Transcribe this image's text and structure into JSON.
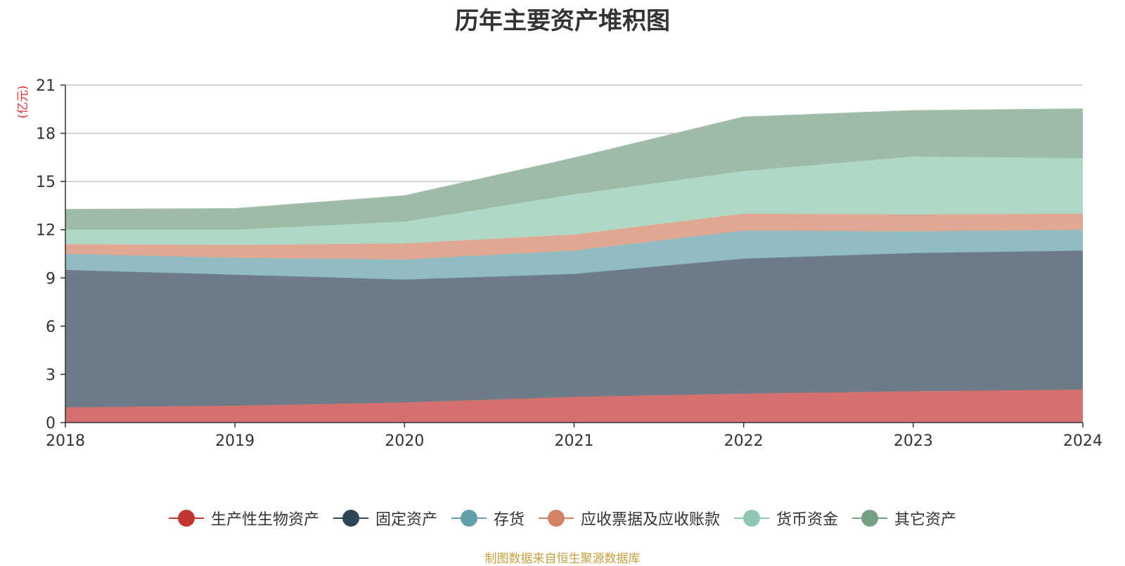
{
  "chart_data": {
    "type": "area",
    "stacked": true,
    "title": "历年主要资产堆积图",
    "unit_label": "(亿元)",
    "categories": [
      "2018",
      "2019",
      "2020",
      "2021",
      "2022",
      "2023",
      "2024"
    ],
    "yticks": [
      "0",
      "3",
      "6",
      "9",
      "12",
      "15",
      "18",
      "21"
    ],
    "ylim": [
      0,
      21
    ],
    "series": [
      {
        "name": "生产性生物资产",
        "color": "#c23531",
        "fill": "#d4706e",
        "values": [
          0.95,
          1.05,
          1.25,
          1.6,
          1.8,
          1.95,
          2.05
        ]
      },
      {
        "name": "固定资产",
        "color": "#2f4554",
        "fill": "#6d7c88",
        "values": [
          8.55,
          8.15,
          7.65,
          7.65,
          8.4,
          8.6,
          8.65
        ]
      },
      {
        "name": "存货",
        "color": "#61a0a8",
        "fill": "#90bcc2",
        "values": [
          1.0,
          1.05,
          1.25,
          1.45,
          1.75,
          1.35,
          1.3
        ]
      },
      {
        "name": "应收票据及应收账款",
        "color": "#d48265",
        "fill": "#e0a893",
        "values": [
          0.6,
          0.8,
          1.0,
          1.0,
          1.05,
          1.05,
          1.0
        ]
      },
      {
        "name": "货币资金",
        "color": "#91c7ae",
        "fill": "#b0d8c6",
        "values": [
          0.9,
          0.95,
          1.35,
          2.5,
          2.65,
          3.6,
          3.45
        ]
      },
      {
        "name": "其它资产",
        "color": "#749f83",
        "fill": "#9fbba8",
        "values": [
          1.25,
          1.3,
          1.6,
          2.25,
          3.35,
          2.85,
          3.05
        ]
      }
    ],
    "legend_position": "bottom-center",
    "grid": true
  },
  "footer": {
    "source": "制图数据来自恒生聚源数据库"
  }
}
